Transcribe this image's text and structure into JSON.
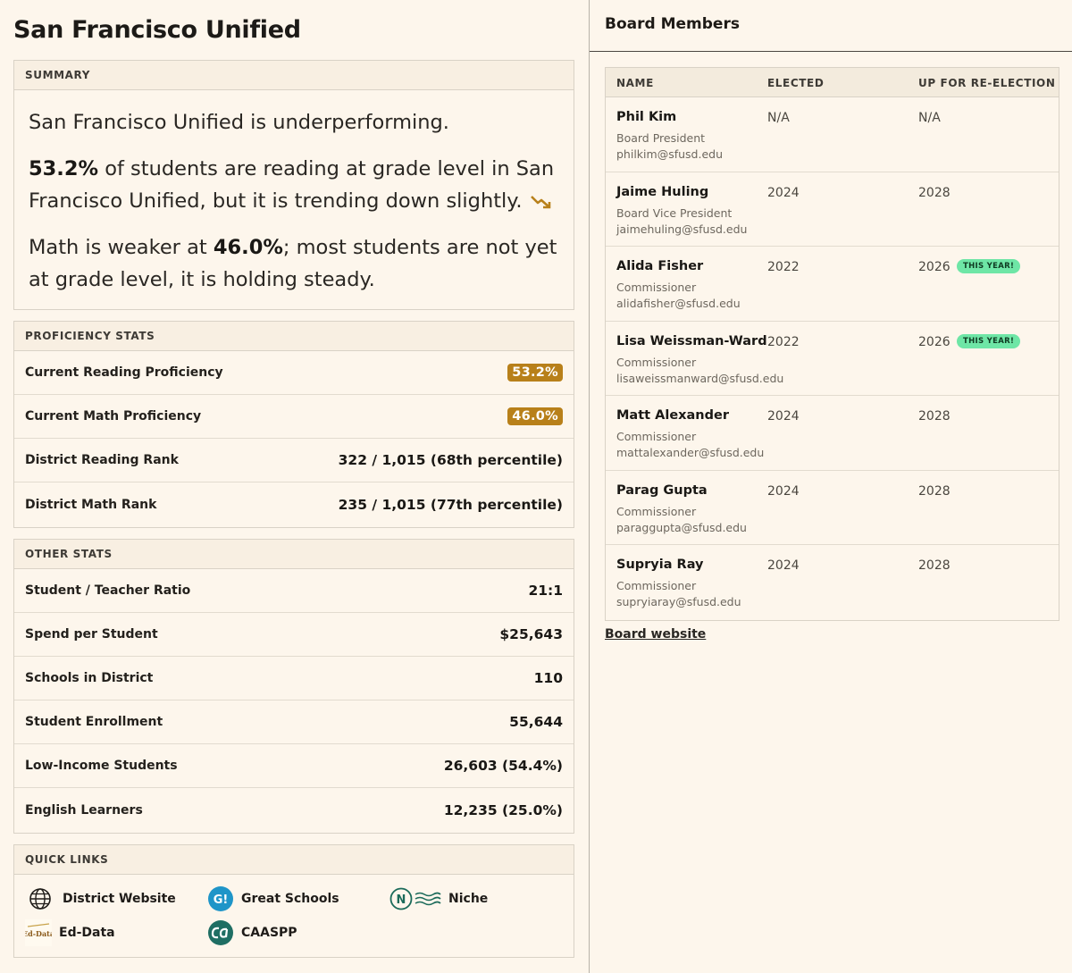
{
  "district": {
    "title": "San Francisco Unified"
  },
  "summary": {
    "header": "SUMMARY",
    "line1": "San Francisco Unified is underperforming.",
    "reading_value": "53.2%",
    "reading_text": " of students are reading at grade level in San Francisco Unified, but it is trending down slightly.",
    "math_pre": "Math is weaker at ",
    "math_value": "46.0%",
    "math_post": "; most students are not yet at grade level, it is holding steady.",
    "trend_icon": "trending-down-icon",
    "trend_color": "#b8801a"
  },
  "proficiency": {
    "header": "PROFICIENCY STATS",
    "rows": [
      {
        "label": "Current Reading Proficiency",
        "value": "53.2%"
      },
      {
        "label": "Current Math Proficiency",
        "value": "46.0%"
      },
      {
        "label": "District Reading Rank",
        "value": "322 / 1,015 (68th percentile)"
      },
      {
        "label": "District Math Rank",
        "value": "235 / 1,015 (77th percentile)"
      }
    ]
  },
  "other": {
    "header": "OTHER STATS",
    "rows": [
      {
        "label": "Student / Teacher Ratio",
        "value": "21:1"
      },
      {
        "label": "Spend per Student",
        "value": "$25,643"
      },
      {
        "label": "Schools in District",
        "value": "110"
      },
      {
        "label": "Student Enrollment",
        "value": "55,644"
      },
      {
        "label": "Low-Income Students",
        "value": "26,603 (54.4%)"
      },
      {
        "label": "English Learners",
        "value": "12,235 (25.0%)"
      }
    ]
  },
  "quick_links": {
    "header": "QUICK LINKS",
    "items": [
      {
        "label": "District Website",
        "icon": "globe-icon"
      },
      {
        "label": "Great Schools",
        "icon": "greatschools-logo-icon"
      },
      {
        "label": "Niche",
        "icon": "niche-logo-icon"
      },
      {
        "label": "Ed-Data",
        "icon": "ed-data-logo-icon"
      },
      {
        "label": "CAASPP",
        "icon": "caaspp-logo-icon"
      }
    ]
  },
  "board": {
    "title": "Board Members",
    "columns": [
      "NAME",
      "ELECTED",
      "UP FOR RE-ELECTION"
    ],
    "members": [
      {
        "name": "Phil Kim",
        "role": "Board President",
        "email": "philkim@sfusd.edu",
        "elected": "N/A",
        "reelection": "N/A",
        "badge": ""
      },
      {
        "name": "Jaime Huling",
        "role": "Board Vice President",
        "email": "jaimehuling@sfusd.edu",
        "elected": "2024",
        "reelection": "2028",
        "badge": ""
      },
      {
        "name": "Alida Fisher",
        "role": "Commissioner",
        "email": "alidafisher@sfusd.edu",
        "elected": "2022",
        "reelection": "2026",
        "badge": "THIS YEAR!"
      },
      {
        "name": "Lisa Weissman-Ward",
        "role": "Commissioner",
        "email": "lisaweissmanward@sfusd.edu",
        "elected": "2022",
        "reelection": "2026",
        "badge": "THIS YEAR!"
      },
      {
        "name": "Matt Alexander",
        "role": "Commissioner",
        "email": "mattalexander@sfusd.edu",
        "elected": "2024",
        "reelection": "2028",
        "badge": ""
      },
      {
        "name": "Parag Gupta",
        "role": "Commissioner",
        "email": "paraggupta@sfusd.edu",
        "elected": "2024",
        "reelection": "2028",
        "badge": ""
      },
      {
        "name": "Supryia Ray",
        "role": "Commissioner",
        "email": "supryiaray@sfusd.edu",
        "elected": "2024",
        "reelection": "2028",
        "badge": ""
      }
    ],
    "website_link": "Board website"
  },
  "colors": {
    "accent": "#b8801a",
    "badge": "#6ee6a6",
    "background": "#fdf6ec"
  }
}
